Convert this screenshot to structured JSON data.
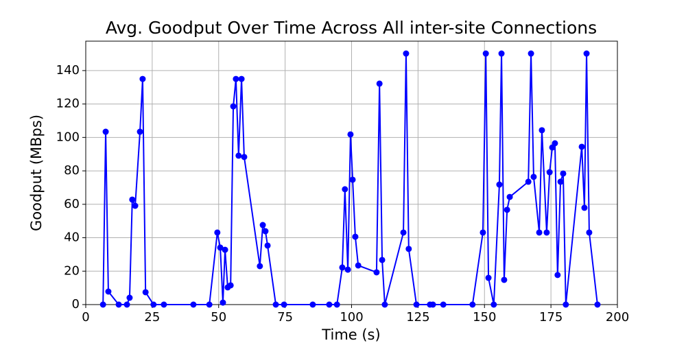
{
  "chart_data": {
    "type": "line",
    "title": "Avg. Goodput Over Time Across All inter-site Connections",
    "xlabel": "Time (s)",
    "ylabel": "Goodput (MBps)",
    "x": [
      6.5,
      7.5,
      8.5,
      12.4,
      15.5,
      16.5,
      17.5,
      18.6,
      20.4,
      21.4,
      22.5,
      25.5,
      29.4,
      40.5,
      46.5,
      49.5,
      50.6,
      51.6,
      52.4,
      53.4,
      54.5,
      55.5,
      56.5,
      57.5,
      58.6,
      59.6,
      65.5,
      66.6,
      67.6,
      68.4,
      71.5,
      74.6,
      85.4,
      91.6,
      94.5,
      96.5,
      97.5,
      98.6,
      99.6,
      100.4,
      101.4,
      102.5,
      109.4,
      110.5,
      111.5,
      112.5,
      119.5,
      120.5,
      121.5,
      124.4,
      129.5,
      130.6,
      134.5,
      145.5,
      149.4,
      150.5,
      151.5,
      153.5,
      155.6,
      156.4,
      157.4,
      158.5,
      159.5,
      166.5,
      167.5,
      168.5,
      170.6,
      171.6,
      173.4,
      174.5,
      175.5,
      176.5,
      177.5,
      178.6,
      179.6,
      180.6,
      186.6,
      187.6,
      188.4,
      189.4,
      192.5
    ],
    "series": [
      {
        "color": "#0000ff",
        "values": [
          0,
          103.4,
          7.8,
          0,
          0,
          4.1,
          62.8,
          59.1,
          103.4,
          135,
          7.4,
          0,
          0,
          0,
          0,
          43.1,
          34.1,
          1.2,
          32.8,
          10.3,
          11.5,
          118.6,
          135,
          89.1,
          135,
          88.3,
          23,
          47.6,
          43.9,
          35.3,
          0,
          0,
          0,
          0,
          0,
          22.2,
          69,
          20.9,
          101.8,
          74.7,
          40.6,
          23.4,
          19.3,
          132.2,
          26.7,
          0,
          43.1,
          150.2,
          33.3,
          0,
          0,
          0,
          0,
          0,
          43.1,
          150.2,
          16,
          0,
          71.8,
          150.2,
          14.8,
          56.7,
          64.4,
          73.5,
          150.2,
          76.4,
          43.1,
          104.3,
          43.1,
          79.2,
          94,
          96.5,
          17.7,
          73.5,
          78.4,
          0,
          94.4,
          57.9,
          150.2,
          43.1,
          0
        ]
      }
    ],
    "xlim": [
      0,
      200
    ],
    "xticks": [
      0,
      25,
      50,
      75,
      100,
      125,
      150,
      175,
      200
    ],
    "ylim": [
      0,
      157.6
    ],
    "yticks": [
      0,
      20,
      40,
      60,
      80,
      100,
      120,
      140
    ],
    "grid": true
  }
}
